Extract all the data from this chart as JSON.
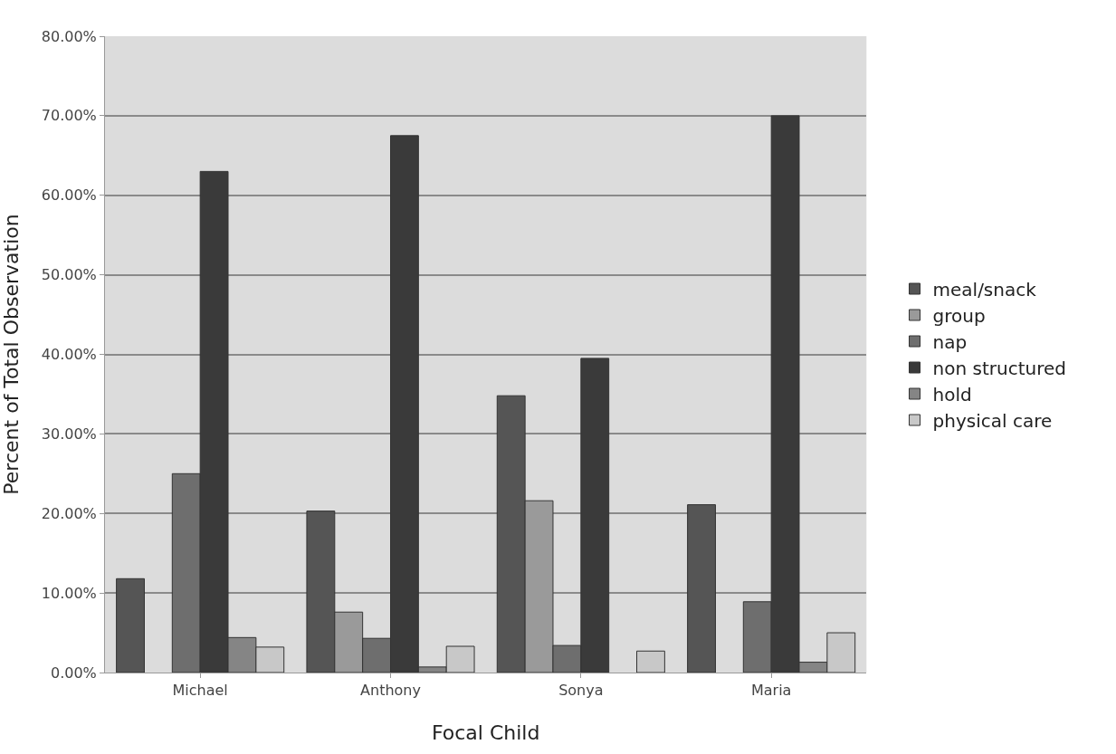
{
  "chart_data": {
    "type": "bar",
    "xlabel": "Focal Child",
    "ylabel": "Percent of Total Observation",
    "categories": [
      "Michael",
      "Anthony",
      "Sonya",
      "Maria"
    ],
    "series": [
      {
        "name": "meal/snack",
        "color": "#555555",
        "values": [
          11.8,
          20.3,
          34.8,
          21.1
        ]
      },
      {
        "name": "group",
        "color": "#9a9a9a",
        "values": [
          null,
          7.6,
          21.6,
          null
        ]
      },
      {
        "name": "nap",
        "color": "#6e6e6e",
        "values": [
          25,
          4.3,
          3.4,
          8.9
        ]
      },
      {
        "name": "non structured",
        "color": "#3a3a3a",
        "values": [
          63,
          67.5,
          39.5,
          70
        ]
      },
      {
        "name": "hold",
        "color": "#858585",
        "values": [
          4.4,
          0.7,
          null,
          1.3
        ]
      },
      {
        "name": "physical care",
        "color": "#c8c8c8",
        "values": [
          3.2,
          3.3,
          2.7,
          5
        ]
      }
    ],
    "ylim": [
      0,
      80
    ],
    "yticks": [
      {
        "value": 0,
        "label": "0.00%"
      },
      {
        "value": 10,
        "label": "10.00%"
      },
      {
        "value": 20,
        "label": "20.00%"
      },
      {
        "value": 30,
        "label": "30.00%"
      },
      {
        "value": 40,
        "label": "40.00%"
      },
      {
        "value": 50,
        "label": "50.00%"
      },
      {
        "value": 60,
        "label": "60.00%"
      },
      {
        "value": 70,
        "label": "70.00%"
      },
      {
        "value": 80,
        "label": "80.00%"
      }
    ],
    "grid": "y",
    "legend": "right"
  }
}
